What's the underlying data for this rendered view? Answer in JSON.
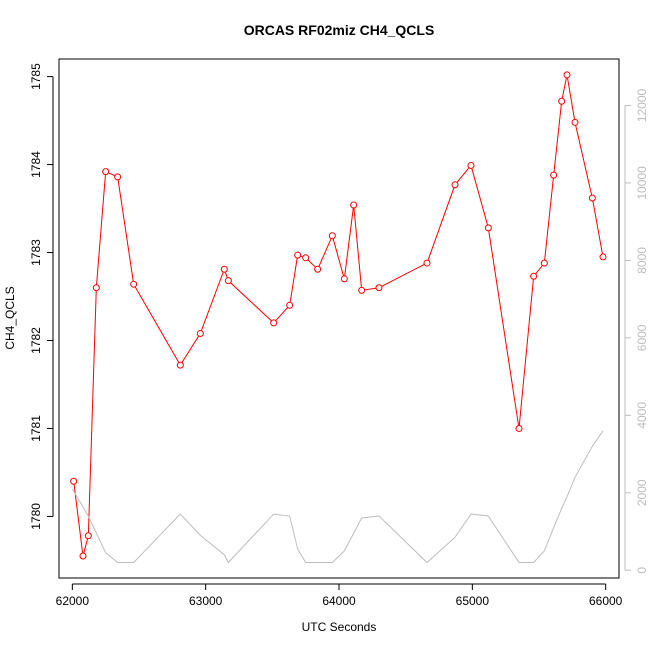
{
  "chart_data": {
    "type": "line",
    "title": "ORCAS RF02miz CH4_QCLS",
    "xlabel": "UTC Seconds",
    "ylabel": "CH4_QCLS",
    "y2label": "",
    "xlim": [
      61900,
      66100
    ],
    "ylim": [
      1779.3,
      1785.2
    ],
    "y2lim": [
      -200,
      13200
    ],
    "x_ticks": [
      62000,
      63000,
      64000,
      65000,
      66000
    ],
    "y_ticks": [
      1780,
      1781,
      1782,
      1783,
      1784,
      1785
    ],
    "y2_ticks": [
      0,
      2000,
      4000,
      6000,
      8000,
      10000,
      12000
    ],
    "grid": false,
    "series": [
      {
        "name": "",
        "axis": "left",
        "color": "#ff0000",
        "style": "line+open-circles",
        "x": [
          62010,
          62080,
          62120,
          62180,
          62250,
          62340,
          62460,
          62810,
          62960,
          63140,
          63170,
          63510,
          63630,
          63690,
          63750,
          63840,
          63950,
          64040,
          64110,
          64170,
          64300,
          64660,
          64870,
          64990,
          65120,
          65350,
          65460,
          65540,
          65610,
          65670,
          65710,
          65770,
          65900,
          65980
        ],
        "y": [
          1780.4,
          1779.55,
          1779.78,
          1782.6,
          1783.92,
          1783.86,
          1782.64,
          1781.72,
          1782.08,
          1782.81,
          1782.68,
          1782.2,
          1782.4,
          1782.97,
          1782.94,
          1782.81,
          1783.19,
          1782.7,
          1783.54,
          1782.57,
          1782.6,
          1782.88,
          1783.77,
          1783.99,
          1783.28,
          1781.0,
          1782.73,
          1782.88,
          1783.88,
          1784.72,
          1785.02,
          1784.48,
          1783.62,
          1782.95
        ]
      },
      {
        "name": "",
        "axis": "right",
        "color": "#bdbdbd",
        "style": "line",
        "x": [
          62000,
          62120,
          62250,
          62340,
          62460,
          62810,
          62960,
          63140,
          63170,
          63510,
          63630,
          63690,
          63750,
          63840,
          63950,
          64040,
          64170,
          64300,
          64660,
          64870,
          64990,
          65120,
          65350,
          65460,
          65540,
          65610,
          65670,
          65710,
          65770,
          65900,
          65980
        ],
        "y": [
          2100,
          1400,
          450,
          200,
          200,
          1450,
          900,
          400,
          200,
          1450,
          1400,
          550,
          200,
          200,
          200,
          500,
          1350,
          1400,
          200,
          850,
          1450,
          1400,
          200,
          200,
          500,
          1100,
          1600,
          1900,
          2400,
          3200,
          3600
        ]
      }
    ]
  }
}
